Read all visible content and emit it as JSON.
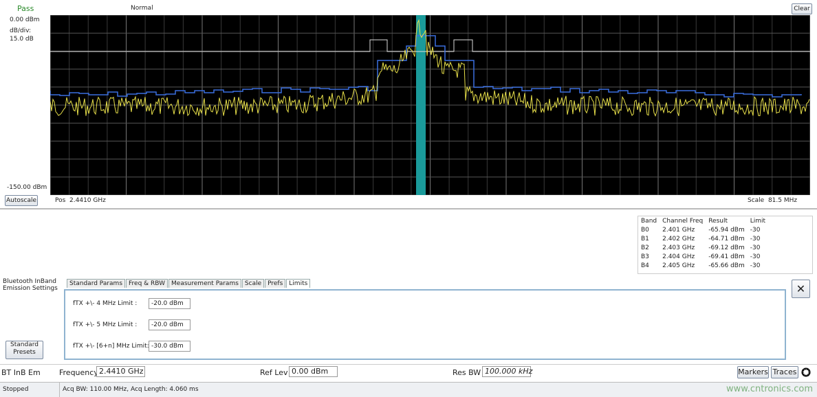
{
  "header": {
    "status": "Pass",
    "mode": "Normal",
    "clear": "Clear"
  },
  "display": {
    "ref_level": "0.00 dBm",
    "scale_label": "dB/div:",
    "scale_value": "15.0 dB",
    "bottom_level": "-150.00 dBm",
    "autoscale": "Autoscale",
    "pos_label": "Pos",
    "pos_value": "2.4410 GHz",
    "span_label": "Scale",
    "span_value": "81.5 MHz"
  },
  "table": {
    "columns": [
      "Band",
      "Channel Freq",
      "Result",
      "Limit"
    ],
    "rows": [
      [
        "B0",
        "2.401 GHz",
        "-65.94 dBm",
        "-30"
      ],
      [
        "B1",
        "2.402 GHz",
        "-64.71 dBm",
        "-30"
      ],
      [
        "B2",
        "2.403 GHz",
        "-69.12 dBm",
        "-30"
      ],
      [
        "B3",
        "2.404 GHz",
        "-69.41 dBm",
        "-30"
      ],
      [
        "B4",
        "2.405 GHz",
        "-65.66 dBm",
        "-30"
      ]
    ]
  },
  "settings": {
    "title_line1": "Bluetooth InBand",
    "title_line2": "Emission Settings",
    "tabs": [
      "Standard Params",
      "Freq & RBW",
      "Measurement Params",
      "Scale",
      "Prefs",
      "Limits"
    ],
    "fields": [
      {
        "label": "fTX +\\- 4 MHz Limit :",
        "value": "-20.0 dBm"
      },
      {
        "label": "fTX +\\- 5 MHz Limit :",
        "value": "-20.0 dBm"
      },
      {
        "label": "fTX +\\- [6+n] MHz Limit:",
        "value": "-30.0 dBm"
      }
    ],
    "presets": "Standard Presets",
    "close": "✕"
  },
  "toolbar": {
    "measurement": "BT InB Em",
    "freq_label": "Frequency",
    "freq_value": "2.4410 GHz",
    "ref_label": "Ref Lev",
    "ref_value": "0.00 dBm",
    "rbw_label": "Res BW",
    "rbw_value": "100.000 kHz",
    "markers": "Markers",
    "traces": "Traces"
  },
  "statusbar": {
    "state": "Stopped",
    "acq": "Acq BW: 110.00 MHz, Acq Length: 4.060 ms",
    "watermark": "www.cntronics.com"
  }
}
